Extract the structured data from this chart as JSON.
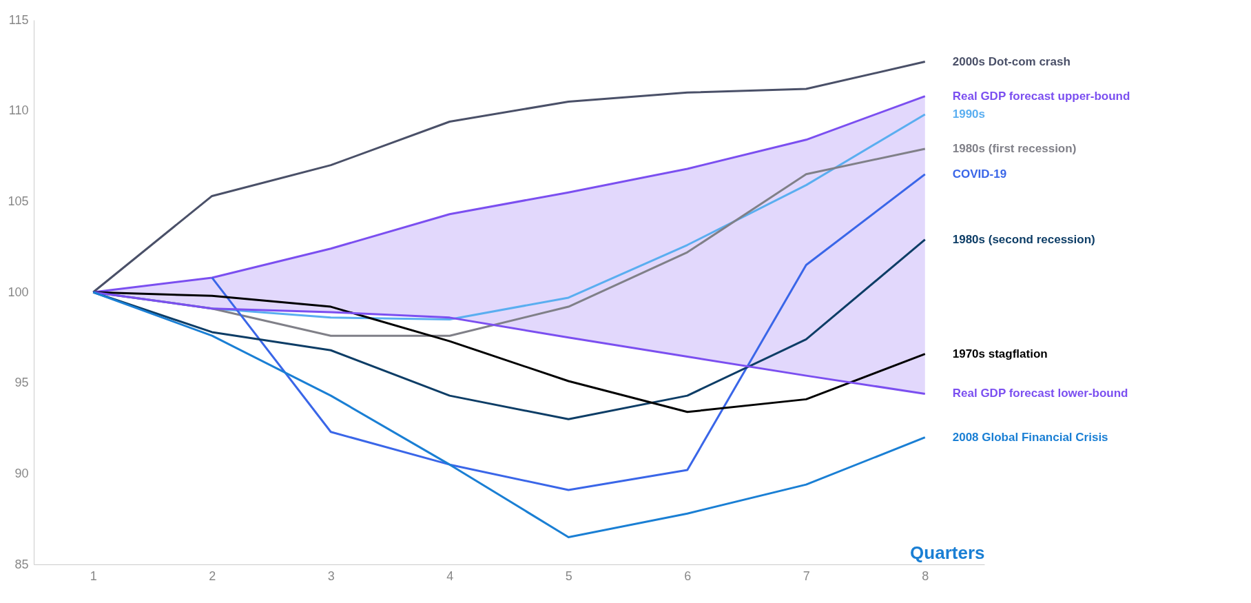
{
  "chart_data": {
    "type": "line",
    "xlabel": "Quarters",
    "x": [
      1,
      2,
      3,
      4,
      5,
      6,
      7,
      8
    ],
    "xlim": [
      0.5,
      8.5
    ],
    "xticks": [
      1,
      2,
      3,
      4,
      5,
      6,
      7,
      8
    ],
    "ylim": [
      85,
      115
    ],
    "yticks": [
      85,
      90,
      95,
      100,
      105,
      110,
      115
    ],
    "grid": false,
    "marker": "none",
    "line_style": "solid",
    "series": [
      {
        "name": "2000s Dot-com crash",
        "color": "#4a5068",
        "values": [
          100,
          105.3,
          107.0,
          109.4,
          110.5,
          111.0,
          111.2,
          112.7
        ]
      },
      {
        "name": "Real GDP forecast upper-bound",
        "color": "#7b4ff0",
        "values": [
          100,
          100.8,
          102.4,
          104.3,
          105.5,
          106.8,
          108.4,
          110.8
        ],
        "lower": [
          100,
          99.1,
          98.9,
          98.6,
          97.5,
          96.45,
          95.4,
          94.4
        ],
        "upper": [
          100,
          100.8,
          102.4,
          104.3,
          105.5,
          106.8,
          108.4,
          110.8
        ]
      },
      {
        "name": "1990s",
        "color": "#5aaef0",
        "values": [
          100,
          99.1,
          98.6,
          98.5,
          99.7,
          102.6,
          105.9,
          109.8
        ]
      },
      {
        "name": "1980s (first recession)",
        "color": "#808088",
        "values": [
          100,
          99.1,
          97.6,
          97.6,
          99.2,
          102.2,
          106.5,
          107.9
        ]
      },
      {
        "name": "COVID-19",
        "color": "#3a66e8",
        "values": [
          null,
          100.8,
          92.3,
          90.5,
          89.1,
          90.2,
          101.5,
          106.5
        ]
      },
      {
        "name": "1980s (second recession)",
        "color": "#0d3d66",
        "values": [
          100,
          97.8,
          96.8,
          94.3,
          93.0,
          94.3,
          97.4,
          102.9
        ]
      },
      {
        "name": "1970s stagflation",
        "color": "#000000",
        "values": [
          100,
          99.8,
          99.2,
          97.3,
          95.1,
          93.4,
          94.1,
          96.6
        ]
      },
      {
        "name": "Real GDP forecast lower-bound",
        "color": "#7b4ff0",
        "values": [
          100,
          99.1,
          98.9,
          98.6,
          97.5,
          96.45,
          95.4,
          94.4
        ]
      },
      {
        "name": "2008 Global Financial Crisis",
        "color": "#1a7fd4",
        "values": [
          100,
          97.6,
          94.3,
          90.5,
          86.5,
          87.8,
          89.4,
          92.0
        ]
      }
    ]
  }
}
